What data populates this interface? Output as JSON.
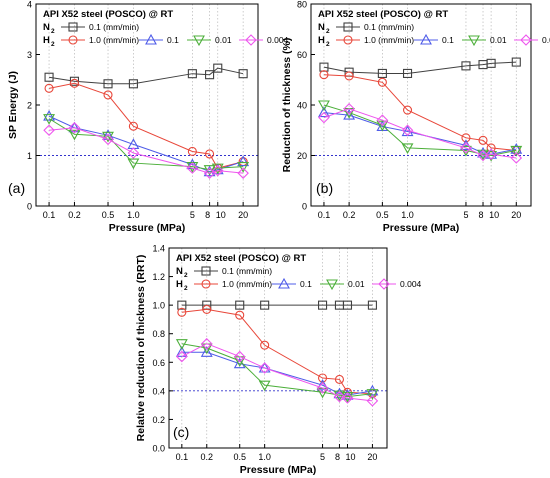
{
  "colors": {
    "n2": "#404040",
    "h2_1": "#e8473a",
    "h2_01": "#4f5ce8",
    "h2_001": "#4caf3a",
    "h2_0004": "#ee55ee",
    "ref": "#3333cc",
    "grid": "#b8b8b8"
  },
  "legend": {
    "n2_label": "N",
    "n2_sub": "2",
    "h2_label": "H",
    "h2_sub": "2",
    "n2_entry": "0.1 (mm/min)",
    "h2_entries": [
      "1.0 (mm/min)",
      "0.1",
      "0.01",
      "0.004"
    ]
  },
  "chart_data": [
    {
      "type": "line",
      "panel": "(a)",
      "title": "API X52 steel (POSCO) @ RT",
      "xlabel": "Pressure (MPa)",
      "ylabel": "SP Energy (J)",
      "xscale": "log",
      "x": [
        0.1,
        0.2,
        0.5,
        1,
        5,
        8,
        10,
        20
      ],
      "xticks": [
        "0.1",
        "0.2",
        "0.5",
        "1.0",
        "5",
        "8",
        "10",
        "20"
      ],
      "ylim": [
        0,
        4
      ],
      "yticks": [
        "0",
        "1",
        "2",
        "3",
        "4"
      ],
      "reference_line": 1.0,
      "series": [
        {
          "name": "N2 0.1 (mm/min)",
          "values": [
            2.55,
            2.47,
            2.42,
            2.42,
            2.62,
            2.6,
            2.73,
            2.62
          ]
        },
        {
          "name": "H2 1.0 (mm/min)",
          "values": [
            2.33,
            2.43,
            2.2,
            1.58,
            1.08,
            1.03,
            0.75,
            0.88
          ]
        },
        {
          "name": "H2 0.1",
          "values": [
            1.78,
            1.55,
            1.4,
            1.22,
            0.82,
            0.68,
            0.72,
            0.88
          ]
        },
        {
          "name": "H2 0.01",
          "values": [
            1.73,
            1.42,
            1.38,
            0.85,
            0.78,
            0.72,
            0.75,
            0.78
          ]
        },
        {
          "name": "H2 0.004",
          "values": [
            1.5,
            1.55,
            1.32,
            1.05,
            0.75,
            0.65,
            0.7,
            0.65
          ]
        }
      ]
    },
    {
      "type": "line",
      "panel": "(b)",
      "title": "API X52 steel (POSCO) @ RT",
      "xlabel": "Pressure (MPa)",
      "ylabel": "Reduction of thickness (%)",
      "xscale": "log",
      "x": [
        0.1,
        0.2,
        0.5,
        1,
        5,
        8,
        10,
        20
      ],
      "xticks": [
        "0.1",
        "0.2",
        "0.5",
        "1.0",
        "5",
        "8",
        "10",
        "20"
      ],
      "ylim": [
        0,
        80
      ],
      "yticks": [
        "0",
        "20",
        "40",
        "60",
        "80"
      ],
      "reference_line": 20,
      "series": [
        {
          "name": "N2 0.1 (mm/min)",
          "values": [
            55,
            53,
            52.5,
            52.5,
            55.5,
            56,
            56.5,
            57
          ]
        },
        {
          "name": "H2 1.0 (mm/min)",
          "values": [
            52,
            51.5,
            49,
            38,
            27,
            26,
            23,
            22
          ]
        },
        {
          "name": "H2 0.1",
          "values": [
            37,
            36,
            31.5,
            29.5,
            24,
            21,
            20.5,
            22.5
          ]
        },
        {
          "name": "H2 0.01",
          "values": [
            40,
            37,
            32,
            23,
            22,
            20.5,
            20,
            22
          ]
        },
        {
          "name": "H2 0.004",
          "values": [
            35,
            38.5,
            34,
            30,
            23,
            20,
            20.5,
            19
          ]
        }
      ]
    },
    {
      "type": "line",
      "panel": "(c)",
      "title": "API X52 steel (POSCO) @ RT",
      "xlabel": "Pressure (MPa)",
      "ylabel": "Relative reduction of thickness (RRT)",
      "xscale": "log",
      "x": [
        0.1,
        0.2,
        0.5,
        1,
        5,
        8,
        10,
        20
      ],
      "xticks": [
        "0.1",
        "0.2",
        "0.5",
        "1.0",
        "5",
        "8",
        "10",
        "20"
      ],
      "ylim": [
        0.0,
        1.4
      ],
      "yticks": [
        "0.0",
        "0.2",
        "0.4",
        "0.6",
        "0.8",
        "1.0",
        "1.2",
        "1.4"
      ],
      "reference_line": 0.4,
      "series": [
        {
          "name": "N2 0.1 (mm/min)",
          "values": [
            1.0,
            1.0,
            1.0,
            1.0,
            1.0,
            1.0,
            1.0,
            1.0
          ]
        },
        {
          "name": "H2 1.0 (mm/min)",
          "values": [
            0.95,
            0.97,
            0.93,
            0.72,
            0.49,
            0.48,
            0.39,
            0.38
          ]
        },
        {
          "name": "H2 0.1",
          "values": [
            0.67,
            0.67,
            0.59,
            0.56,
            0.44,
            0.38,
            0.37,
            0.4
          ]
        },
        {
          "name": "H2 0.01",
          "values": [
            0.73,
            0.7,
            0.61,
            0.44,
            0.39,
            0.37,
            0.36,
            0.38
          ]
        },
        {
          "name": "H2 0.004",
          "values": [
            0.64,
            0.73,
            0.64,
            0.56,
            0.42,
            0.36,
            0.35,
            0.33
          ]
        }
      ]
    }
  ]
}
